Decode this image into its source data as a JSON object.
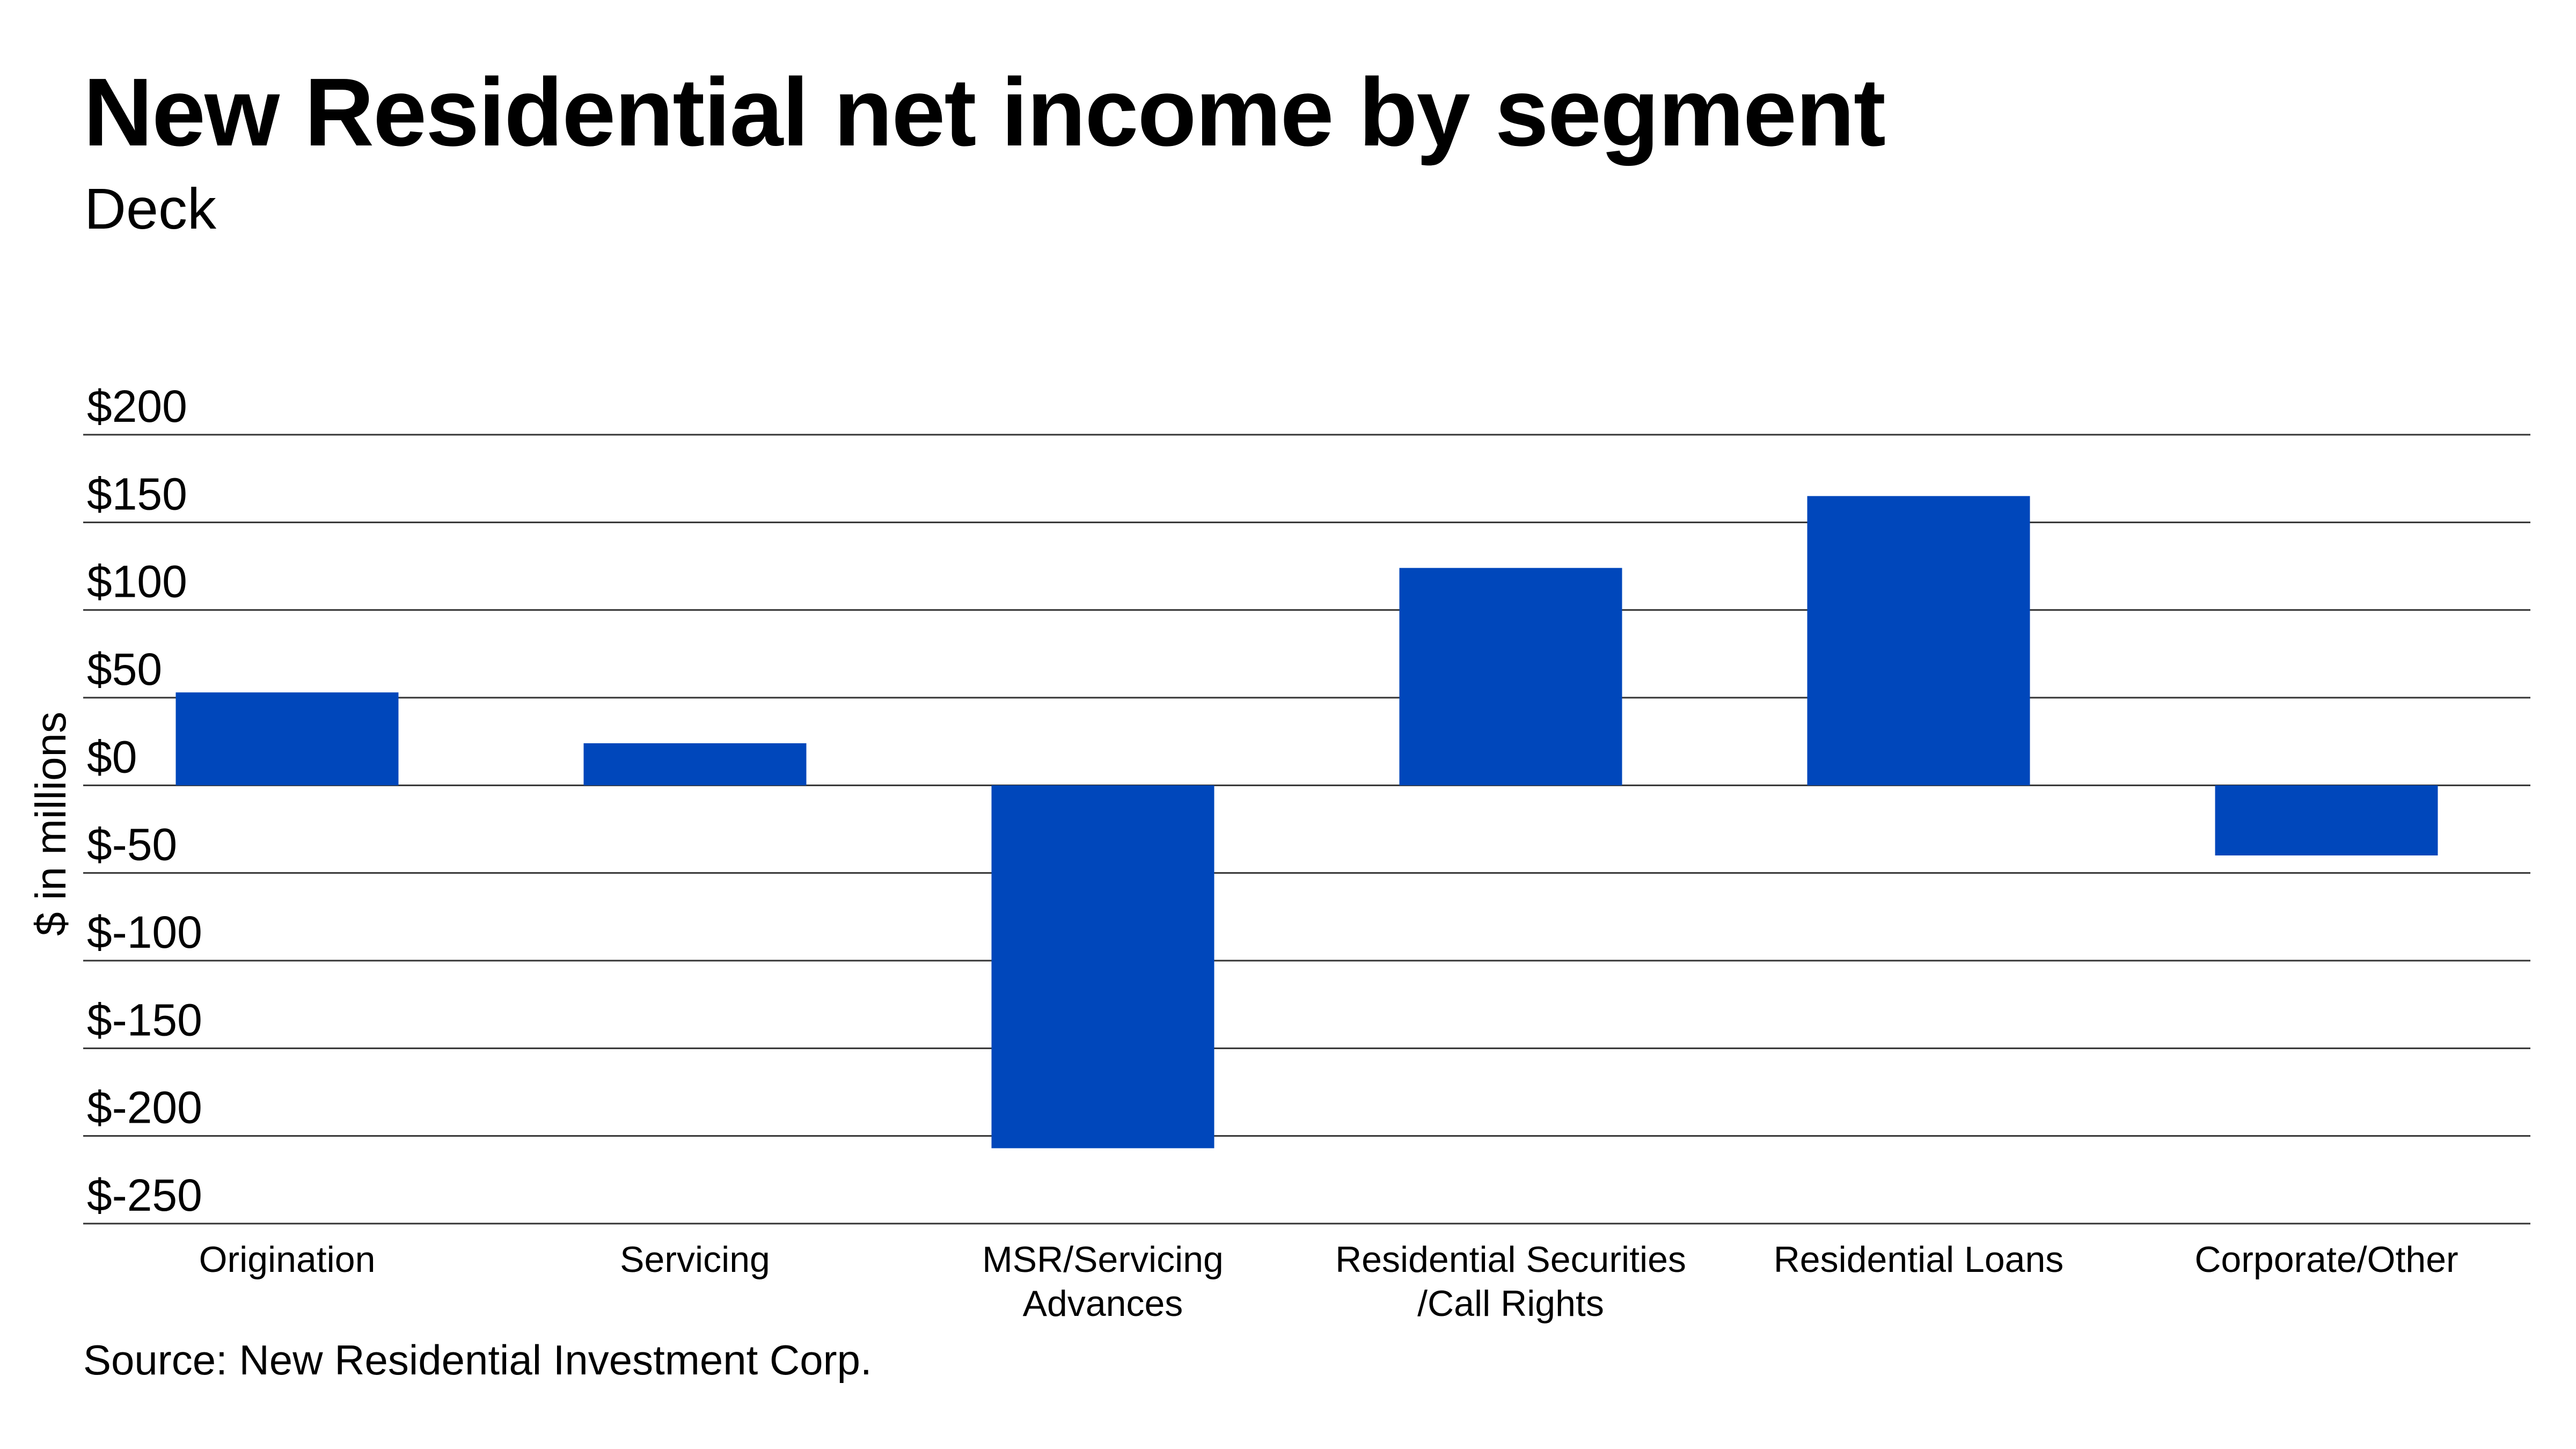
{
  "chart_data": {
    "type": "bar",
    "title": "New Residential net income by segment",
    "subtitle": "Deck",
    "ylabel": "$ in millions",
    "xlabel": "",
    "source": "Source: New Residential Investment Corp.",
    "ylim": [
      -250,
      200
    ],
    "yticks": [
      200,
      150,
      100,
      50,
      0,
      -50,
      -100,
      -150,
      -200,
      -250
    ],
    "ytick_labels": [
      "$200",
      "$150",
      "$100",
      "$50",
      "$0",
      "$-50",
      "$-100",
      "$-150",
      "$-200",
      "$-250"
    ],
    "categories": [
      [
        "Origination"
      ],
      [
        "Servicing"
      ],
      [
        "MSR/Servicing",
        "Advances"
      ],
      [
        "Residential Securities",
        "/Call Rights"
      ],
      [
        "Residential Loans"
      ],
      [
        "Corporate/Other"
      ]
    ],
    "values": [
      53,
      24,
      -207,
      124,
      165,
      -40
    ],
    "grid": true,
    "colors": {
      "bar": "#0047BB",
      "grid": "#333333",
      "text": "#000000",
      "background": "#FFFFFF"
    }
  }
}
